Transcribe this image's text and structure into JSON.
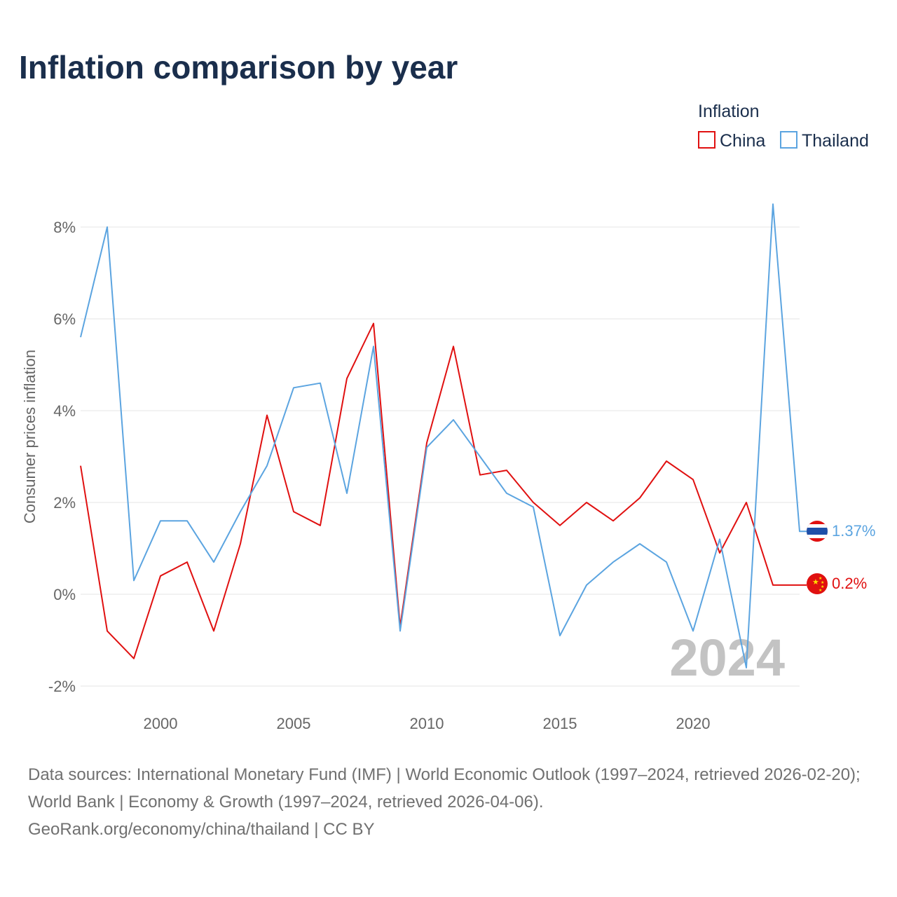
{
  "title": "Inflation comparison by year",
  "legend": {
    "title": "Inflation",
    "items": [
      {
        "name": "China",
        "color": "#e01010"
      },
      {
        "name": "Thailand",
        "color": "#5ba4e0"
      }
    ]
  },
  "current_year": "2024",
  "chart_data": {
    "type": "line",
    "title": "Inflation comparison by year",
    "xlabel": "",
    "ylabel": "Consumer prices inflation",
    "ylim": [
      -2,
      8.5
    ],
    "xlim": [
      1997,
      2024
    ],
    "x_ticks": [
      2000,
      2005,
      2010,
      2015,
      2020
    ],
    "y_ticks": [
      {
        "value": -2,
        "label": "-2%"
      },
      {
        "value": 0,
        "label": "0%"
      },
      {
        "value": 2,
        "label": "2%"
      },
      {
        "value": 4,
        "label": "4%"
      },
      {
        "value": 6,
        "label": "6%"
      },
      {
        "value": 8,
        "label": "8%"
      }
    ],
    "grid": true,
    "legend_position": "top-right",
    "x": [
      1997,
      1998,
      1999,
      2000,
      2001,
      2002,
      2003,
      2004,
      2005,
      2006,
      2007,
      2008,
      2009,
      2010,
      2011,
      2012,
      2013,
      2014,
      2015,
      2016,
      2017,
      2018,
      2019,
      2020,
      2021,
      2022,
      2023,
      2024
    ],
    "series": [
      {
        "name": "China",
        "color": "#e01010",
        "end_label": "0.2%",
        "values": [
          2.8,
          -0.8,
          -1.4,
          0.4,
          0.7,
          -0.8,
          1.1,
          3.9,
          1.8,
          1.5,
          4.7,
          5.9,
          -0.7,
          3.3,
          5.4,
          2.6,
          2.7,
          2.0,
          1.5,
          2.0,
          1.6,
          2.1,
          2.9,
          2.5,
          0.9,
          2.0,
          0.2,
          0.2
        ]
      },
      {
        "name": "Thailand",
        "color": "#5ba4e0",
        "end_label": "1.37%",
        "values": [
          5.6,
          8.0,
          0.3,
          1.6,
          1.6,
          0.7,
          1.8,
          2.8,
          4.5,
          4.6,
          2.2,
          5.4,
          -0.8,
          3.2,
          3.8,
          3.0,
          2.2,
          1.9,
          -0.9,
          0.2,
          0.7,
          1.1,
          0.7,
          -0.8,
          1.2,
          -1.6,
          8.5,
          1.37
        ]
      }
    ]
  },
  "sources": {
    "line1": "Data sources: International Monetary Fund (IMF) | World Economic Outlook (1997–2024, retrieved 2026-02-20); World Bank | Economy & Growth (1997–2024, retrieved 2026-04-06).",
    "line2": "GeoRank.org/economy/china/thailand | CC BY"
  }
}
